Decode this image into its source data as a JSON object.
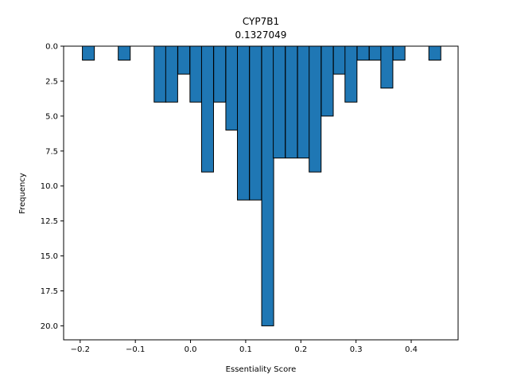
{
  "chart_data": {
    "type": "bar",
    "title": "CYP7B1",
    "subtitle": "0.1327049",
    "xlabel": "Essentiality Score",
    "ylabel": "Frequency",
    "bar_color": "#1f77b4",
    "edge_color": "#000000",
    "xlim": [
      -0.23,
      0.485
    ],
    "ylim": [
      0,
      21
    ],
    "y_inverted": true,
    "bin_width": 0.0217,
    "xticks": [
      -0.2,
      -0.1,
      0.0,
      0.1,
      0.2,
      0.3,
      0.4
    ],
    "xtick_labels": [
      "−0.2",
      "−0.1",
      "0.0",
      "0.1",
      "0.2",
      "0.3",
      "0.4"
    ],
    "yticks": [
      0,
      2.5,
      5,
      7.5,
      10,
      12.5,
      15,
      17.5,
      20
    ],
    "ytick_labels": [
      "0.0",
      "2.5",
      "5.0",
      "7.5",
      "10.0",
      "12.5",
      "15.0",
      "17.5",
      "20.0"
    ],
    "bins": [
      {
        "x": -0.196,
        "value": 1
      },
      {
        "x": -0.131,
        "value": 1
      },
      {
        "x": -0.066,
        "value": 4
      },
      {
        "x": -0.045,
        "value": 4
      },
      {
        "x": -0.023,
        "value": 2
      },
      {
        "x": -0.001,
        "value": 4
      },
      {
        "x": 0.02,
        "value": 9
      },
      {
        "x": 0.042,
        "value": 4
      },
      {
        "x": 0.064,
        "value": 6
      },
      {
        "x": 0.085,
        "value": 11
      },
      {
        "x": 0.107,
        "value": 11
      },
      {
        "x": 0.129,
        "value": 20
      },
      {
        "x": 0.15,
        "value": 8
      },
      {
        "x": 0.172,
        "value": 8
      },
      {
        "x": 0.194,
        "value": 8
      },
      {
        "x": 0.215,
        "value": 9
      },
      {
        "x": 0.237,
        "value": 5
      },
      {
        "x": 0.259,
        "value": 2
      },
      {
        "x": 0.28,
        "value": 4
      },
      {
        "x": 0.302,
        "value": 1
      },
      {
        "x": 0.324,
        "value": 1
      },
      {
        "x": 0.345,
        "value": 3
      },
      {
        "x": 0.367,
        "value": 1
      },
      {
        "x": 0.432,
        "value": 1
      }
    ]
  }
}
